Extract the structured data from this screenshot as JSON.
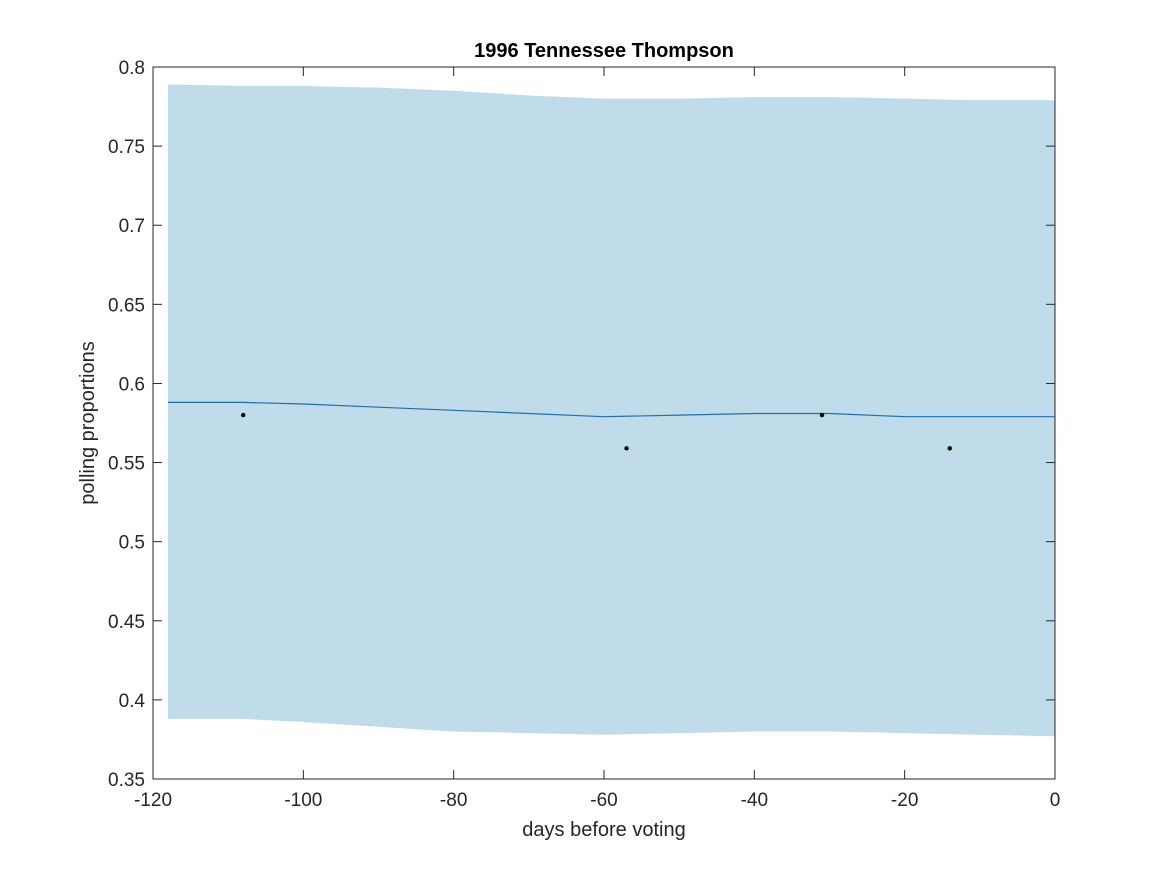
{
  "chart_data": {
    "type": "line",
    "title": "1996 Tennessee Thompson",
    "xlabel": "days before voting",
    "ylabel": "polling proportions",
    "xlim": [
      -120,
      0
    ],
    "ylim": [
      0.35,
      0.8
    ],
    "xticks": [
      -120,
      -100,
      -80,
      -60,
      -40,
      -20,
      0
    ],
    "xtick_labels": [
      "-120",
      "-100",
      "-80",
      "-60",
      "-40",
      "-20",
      "0"
    ],
    "yticks": [
      0.35,
      0.4,
      0.45,
      0.5,
      0.55,
      0.6,
      0.65,
      0.7,
      0.75,
      0.8
    ],
    "ytick_labels": [
      "0.35",
      "0.4",
      "0.45",
      "0.5",
      "0.55",
      "0.6",
      "0.65",
      "0.7",
      "0.75",
      "0.8"
    ],
    "grid": false,
    "band": {
      "x": [
        -118,
        -108,
        -100,
        -90,
        -80,
        -70,
        -60,
        -50,
        -40,
        -30,
        -20,
        -10,
        0
      ],
      "upper": [
        0.789,
        0.788,
        0.788,
        0.787,
        0.785,
        0.782,
        0.78,
        0.78,
        0.781,
        0.781,
        0.78,
        0.779,
        0.779
      ],
      "lower": [
        0.388,
        0.388,
        0.386,
        0.383,
        0.38,
        0.379,
        0.378,
        0.379,
        0.38,
        0.38,
        0.379,
        0.378,
        0.377
      ],
      "color": "#c0dcea"
    },
    "mean_line": {
      "x": [
        -118,
        -108,
        -100,
        -90,
        -80,
        -70,
        -60,
        -50,
        -40,
        -30,
        -20,
        -10,
        0
      ],
      "y": [
        0.588,
        0.588,
        0.587,
        0.585,
        0.583,
        0.581,
        0.579,
        0.58,
        0.581,
        0.581,
        0.579,
        0.579,
        0.579
      ],
      "color": "#1f6fb5"
    },
    "points": {
      "x": [
        -108,
        -57,
        -31,
        -14
      ],
      "y": [
        0.58,
        0.559,
        0.58,
        0.559
      ],
      "color": "#000000"
    }
  }
}
